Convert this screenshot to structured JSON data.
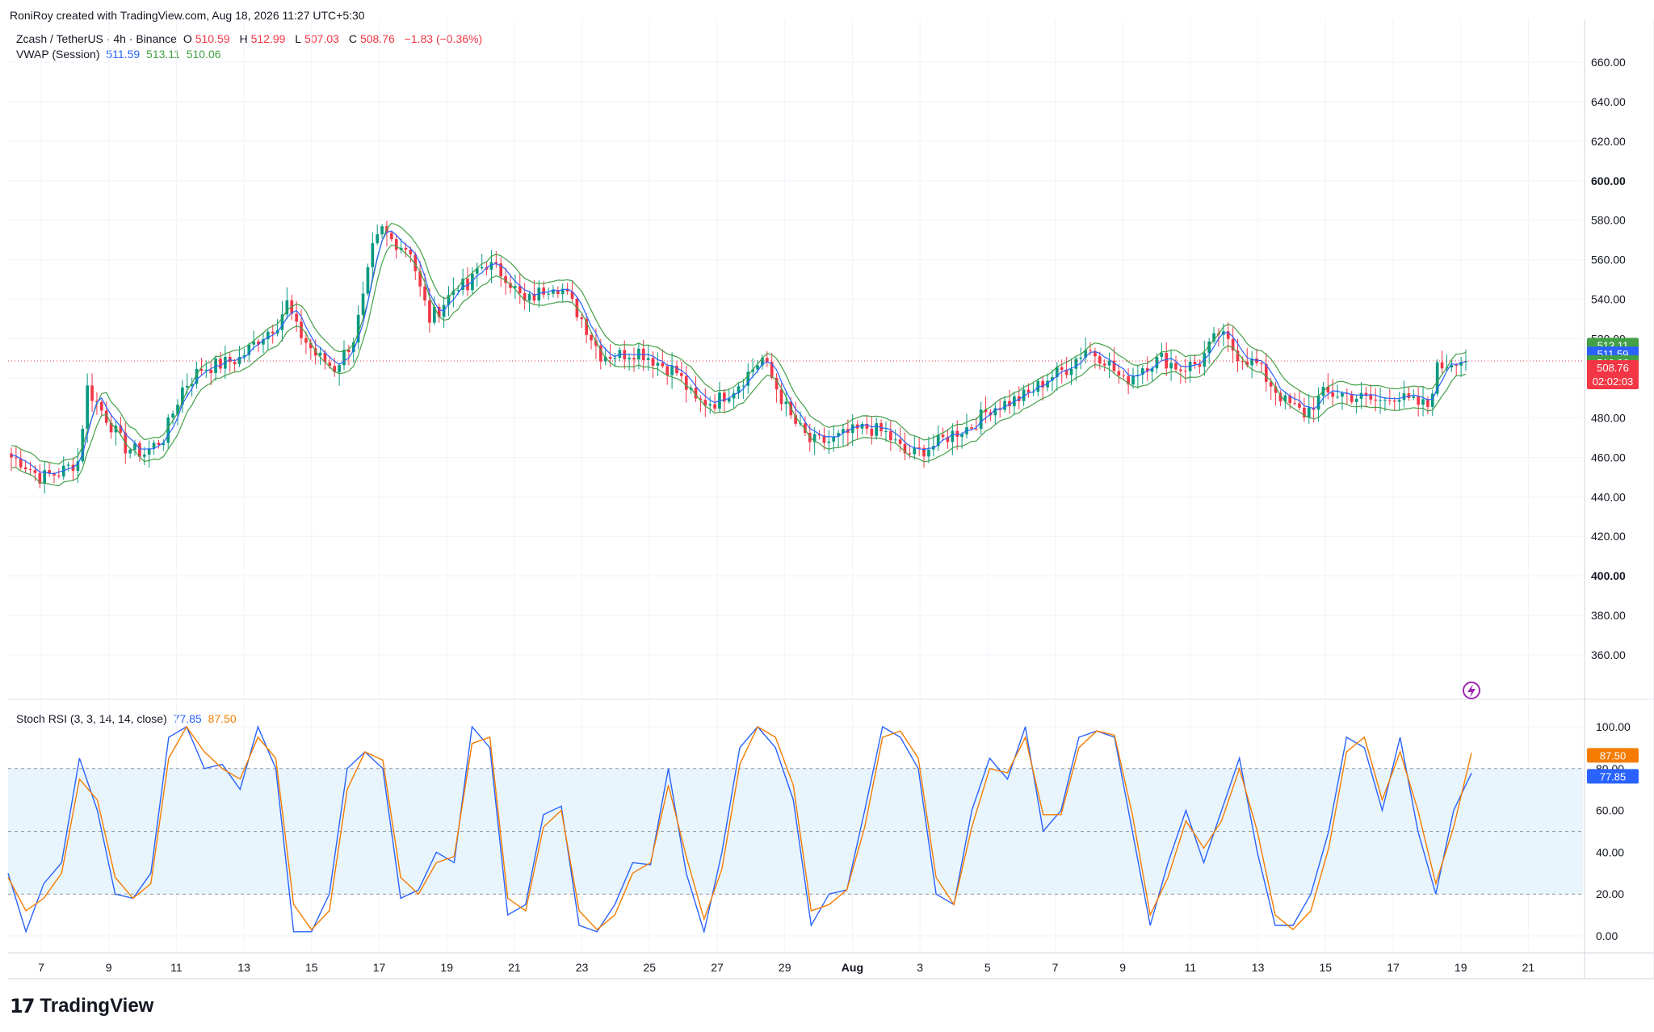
{
  "header": {
    "attribution": "RoniRoy created with TradingView.com, Aug 18, 2026 11:27 UTC+5:30"
  },
  "legend": {
    "symbol": "Zcash / TetherUS · 4h · Binance",
    "o_label": "O",
    "o_value": "510.59",
    "h_label": "H",
    "h_value": "512.99",
    "l_label": "L",
    "l_value": "507.03",
    "c_label": "C",
    "c_value": "508.76",
    "change": "−1.83 (−0.36%)",
    "vwap_name": "VWAP (Session)",
    "vwap_values": [
      "511.59",
      "513.11",
      "510.06"
    ],
    "stoch_name": "Stoch RSI (3, 3, 14, 14, close)",
    "stoch_k": "77.85",
    "stoch_d": "87.50"
  },
  "footer": {
    "logo_mark": "17",
    "logo_text": "TradingView"
  },
  "colors": {
    "up": "#089981",
    "down": "#f23645",
    "vwap": "#2962ff",
    "band_upper": "#43a047",
    "band_lower": "#43a047",
    "k_line": "#2962ff",
    "d_line": "#f57c00",
    "rsi_band": "#e3f2fd"
  },
  "chart_data": [
    {
      "type": "candlestick",
      "title": "Zcash / TetherUS · 4h · Binance",
      "ylim": [
        340,
        680
      ],
      "y_ticks": [
        "660.00",
        "640.00",
        "620.00",
        "600.00",
        "580.00",
        "560.00",
        "540.00",
        "520.00",
        "500.00",
        "480.00",
        "460.00",
        "440.00",
        "420.00",
        "400.00",
        "380.00",
        "360.00"
      ],
      "x_ticks": [
        "7",
        "9",
        "11",
        "13",
        "15",
        "17",
        "19",
        "21",
        "23",
        "25",
        "27",
        "29",
        "Aug",
        "3",
        "5",
        "7",
        "9",
        "11",
        "13",
        "15",
        "17",
        "19",
        "21"
      ],
      "price_key_points": [
        [
          0,
          460
        ],
        [
          2,
          458
        ],
        [
          6,
          450
        ],
        [
          10,
          452
        ],
        [
          14,
          458
        ],
        [
          16,
          495
        ],
        [
          20,
          480
        ],
        [
          24,
          465
        ],
        [
          28,
          462
        ],
        [
          32,
          470
        ],
        [
          36,
          495
        ],
        [
          40,
          505
        ],
        [
          44,
          507
        ],
        [
          48,
          510
        ],
        [
          52,
          520
        ],
        [
          56,
          528
        ],
        [
          58,
          538
        ],
        [
          60,
          525
        ],
        [
          64,
          512
        ],
        [
          68,
          505
        ],
        [
          72,
          520
        ],
        [
          74,
          540
        ],
        [
          76,
          565
        ],
        [
          78,
          575
        ],
        [
          80,
          570
        ],
        [
          84,
          565
        ],
        [
          86,
          545
        ],
        [
          88,
          530
        ],
        [
          90,
          535
        ],
        [
          94,
          548
        ],
        [
          96,
          545
        ],
        [
          98,
          555
        ],
        [
          100,
          558
        ],
        [
          104,
          552
        ],
        [
          108,
          538
        ],
        [
          112,
          545
        ],
        [
          114,
          548
        ],
        [
          116,
          545
        ],
        [
          120,
          530
        ],
        [
          124,
          512
        ],
        [
          128,
          512
        ],
        [
          132,
          514
        ],
        [
          136,
          508
        ],
        [
          140,
          503
        ],
        [
          144,
          488
        ],
        [
          148,
          488
        ],
        [
          152,
          495
        ],
        [
          156,
          505
        ],
        [
          158,
          510
        ],
        [
          160,
          500
        ],
        [
          164,
          480
        ],
        [
          168,
          468
        ],
        [
          172,
          468
        ],
        [
          176,
          472
        ],
        [
          180,
          475
        ],
        [
          184,
          472
        ],
        [
          188,
          462
        ],
        [
          190,
          462
        ],
        [
          194,
          466
        ],
        [
          198,
          472
        ],
        [
          202,
          476
        ],
        [
          206,
          485
        ],
        [
          210,
          488
        ],
        [
          214,
          492
        ],
        [
          218,
          500
        ],
        [
          222,
          505
        ],
        [
          226,
          515
        ],
        [
          230,
          510
        ],
        [
          234,
          498
        ],
        [
          238,
          506
        ],
        [
          242,
          510
        ],
        [
          246,
          505
        ],
        [
          250,
          508
        ],
        [
          254,
          523
        ],
        [
          258,
          512
        ],
        [
          262,
          507
        ],
        [
          264,
          500
        ],
        [
          268,
          488
        ],
        [
          272,
          482
        ],
        [
          276,
          492
        ],
        [
          280,
          492
        ],
        [
          284,
          490
        ],
        [
          288,
          488
        ],
        [
          290,
          492
        ],
        [
          294,
          488
        ],
        [
          298,
          486
        ],
        [
          300,
          505
        ],
        [
          304,
          510
        ],
        [
          306,
          508.76
        ]
      ],
      "last_price": 508.76,
      "countdown": "02:02:03",
      "vwap": {
        "name": "VWAP (Session)",
        "values": [
          511.59,
          513.11,
          510.06
        ]
      }
    },
    {
      "type": "line",
      "title": "Stoch RSI (3, 3, 14, 14, close)",
      "ylim": [
        -8,
        108
      ],
      "y_ticks": [
        "100.00",
        "80.00",
        "60.00",
        "40.00",
        "20.00",
        "0.00"
      ],
      "band": [
        20,
        80
      ],
      "series": [
        {
          "name": "K",
          "last": 77.85,
          "points": [
            [
              0,
              30
            ],
            [
              3,
              2
            ],
            [
              6,
              25
            ],
            [
              9,
              35
            ],
            [
              12,
              85
            ],
            [
              15,
              60
            ],
            [
              18,
              20
            ],
            [
              21,
              18
            ],
            [
              24,
              30
            ],
            [
              27,
              95
            ],
            [
              30,
              100
            ],
            [
              33,
              80
            ],
            [
              36,
              82
            ],
            [
              39,
              70
            ],
            [
              42,
              100
            ],
            [
              45,
              80
            ],
            [
              48,
              2
            ],
            [
              51,
              2
            ],
            [
              54,
              20
            ],
            [
              57,
              80
            ],
            [
              60,
              88
            ],
            [
              63,
              80
            ],
            [
              66,
              18
            ],
            [
              69,
              22
            ],
            [
              72,
              40
            ],
            [
              75,
              35
            ],
            [
              78,
              100
            ],
            [
              81,
              90
            ],
            [
              84,
              10
            ],
            [
              87,
              15
            ],
            [
              90,
              58
            ],
            [
              93,
              62
            ],
            [
              96,
              5
            ],
            [
              99,
              2
            ],
            [
              102,
              15
            ],
            [
              105,
              35
            ],
            [
              108,
              34
            ],
            [
              111,
              80
            ],
            [
              114,
              30
            ],
            [
              117,
              2
            ],
            [
              120,
              40
            ],
            [
              123,
              90
            ],
            [
              126,
              100
            ],
            [
              129,
              90
            ],
            [
              132,
              65
            ],
            [
              135,
              5
            ],
            [
              138,
              20
            ],
            [
              141,
              22
            ],
            [
              144,
              60
            ],
            [
              147,
              100
            ],
            [
              150,
              95
            ],
            [
              153,
              80
            ],
            [
              156,
              20
            ],
            [
              159,
              15
            ],
            [
              162,
              60
            ],
            [
              165,
              85
            ],
            [
              168,
              75
            ],
            [
              171,
              100
            ],
            [
              174,
              50
            ],
            [
              177,
              60
            ],
            [
              180,
              95
            ],
            [
              183,
              98
            ],
            [
              186,
              95
            ],
            [
              189,
              50
            ],
            [
              192,
              5
            ],
            [
              195,
              35
            ],
            [
              198,
              60
            ],
            [
              201,
              35
            ],
            [
              204,
              60
            ],
            [
              207,
              85
            ],
            [
              210,
              40
            ],
            [
              213,
              5
            ],
            [
              216,
              5
            ],
            [
              219,
              20
            ],
            [
              222,
              50
            ],
            [
              225,
              95
            ],
            [
              228,
              90
            ],
            [
              231,
              60
            ],
            [
              234,
              95
            ],
            [
              237,
              50
            ],
            [
              240,
              20
            ],
            [
              243,
              60
            ],
            [
              246,
              77.85
            ]
          ]
        },
        {
          "name": "D",
          "last": 87.5,
          "points": [
            [
              0,
              28
            ],
            [
              3,
              12
            ],
            [
              6,
              18
            ],
            [
              9,
              30
            ],
            [
              12,
              75
            ],
            [
              15,
              65
            ],
            [
              18,
              28
            ],
            [
              21,
              18
            ],
            [
              24,
              25
            ],
            [
              27,
              85
            ],
            [
              30,
              100
            ],
            [
              33,
              88
            ],
            [
              36,
              80
            ],
            [
              39,
              75
            ],
            [
              42,
              95
            ],
            [
              45,
              85
            ],
            [
              48,
              15
            ],
            [
              51,
              3
            ],
            [
              54,
              12
            ],
            [
              57,
              70
            ],
            [
              60,
              88
            ],
            [
              63,
              84
            ],
            [
              66,
              28
            ],
            [
              69,
              20
            ],
            [
              72,
              35
            ],
            [
              75,
              38
            ],
            [
              78,
              92
            ],
            [
              81,
              95
            ],
            [
              84,
              18
            ],
            [
              87,
              12
            ],
            [
              90,
              52
            ],
            [
              93,
              60
            ],
            [
              96,
              12
            ],
            [
              99,
              3
            ],
            [
              102,
              10
            ],
            [
              105,
              30
            ],
            [
              108,
              35
            ],
            [
              111,
              72
            ],
            [
              114,
              38
            ],
            [
              117,
              8
            ],
            [
              120,
              32
            ],
            [
              123,
              82
            ],
            [
              126,
              100
            ],
            [
              129,
              95
            ],
            [
              132,
              72
            ],
            [
              135,
              12
            ],
            [
              138,
              15
            ],
            [
              141,
              22
            ],
            [
              144,
              52
            ],
            [
              147,
              95
            ],
            [
              150,
              98
            ],
            [
              153,
              85
            ],
            [
              156,
              28
            ],
            [
              159,
              15
            ],
            [
              162,
              52
            ],
            [
              165,
              80
            ],
            [
              168,
              78
            ],
            [
              171,
              95
            ],
            [
              174,
              58
            ],
            [
              177,
              58
            ],
            [
              180,
              90
            ],
            [
              183,
              98
            ],
            [
              186,
              96
            ],
            [
              189,
              58
            ],
            [
              192,
              10
            ],
            [
              195,
              28
            ],
            [
              198,
              55
            ],
            [
              201,
              42
            ],
            [
              204,
              55
            ],
            [
              207,
              80
            ],
            [
              210,
              50
            ],
            [
              213,
              10
            ],
            [
              216,
              3
            ],
            [
              219,
              12
            ],
            [
              222,
              42
            ],
            [
              225,
              88
            ],
            [
              228,
              95
            ],
            [
              231,
              65
            ],
            [
              234,
              88
            ],
            [
              237,
              60
            ],
            [
              240,
              25
            ],
            [
              243,
              52
            ],
            [
              246,
              87.5
            ]
          ]
        }
      ]
    }
  ]
}
